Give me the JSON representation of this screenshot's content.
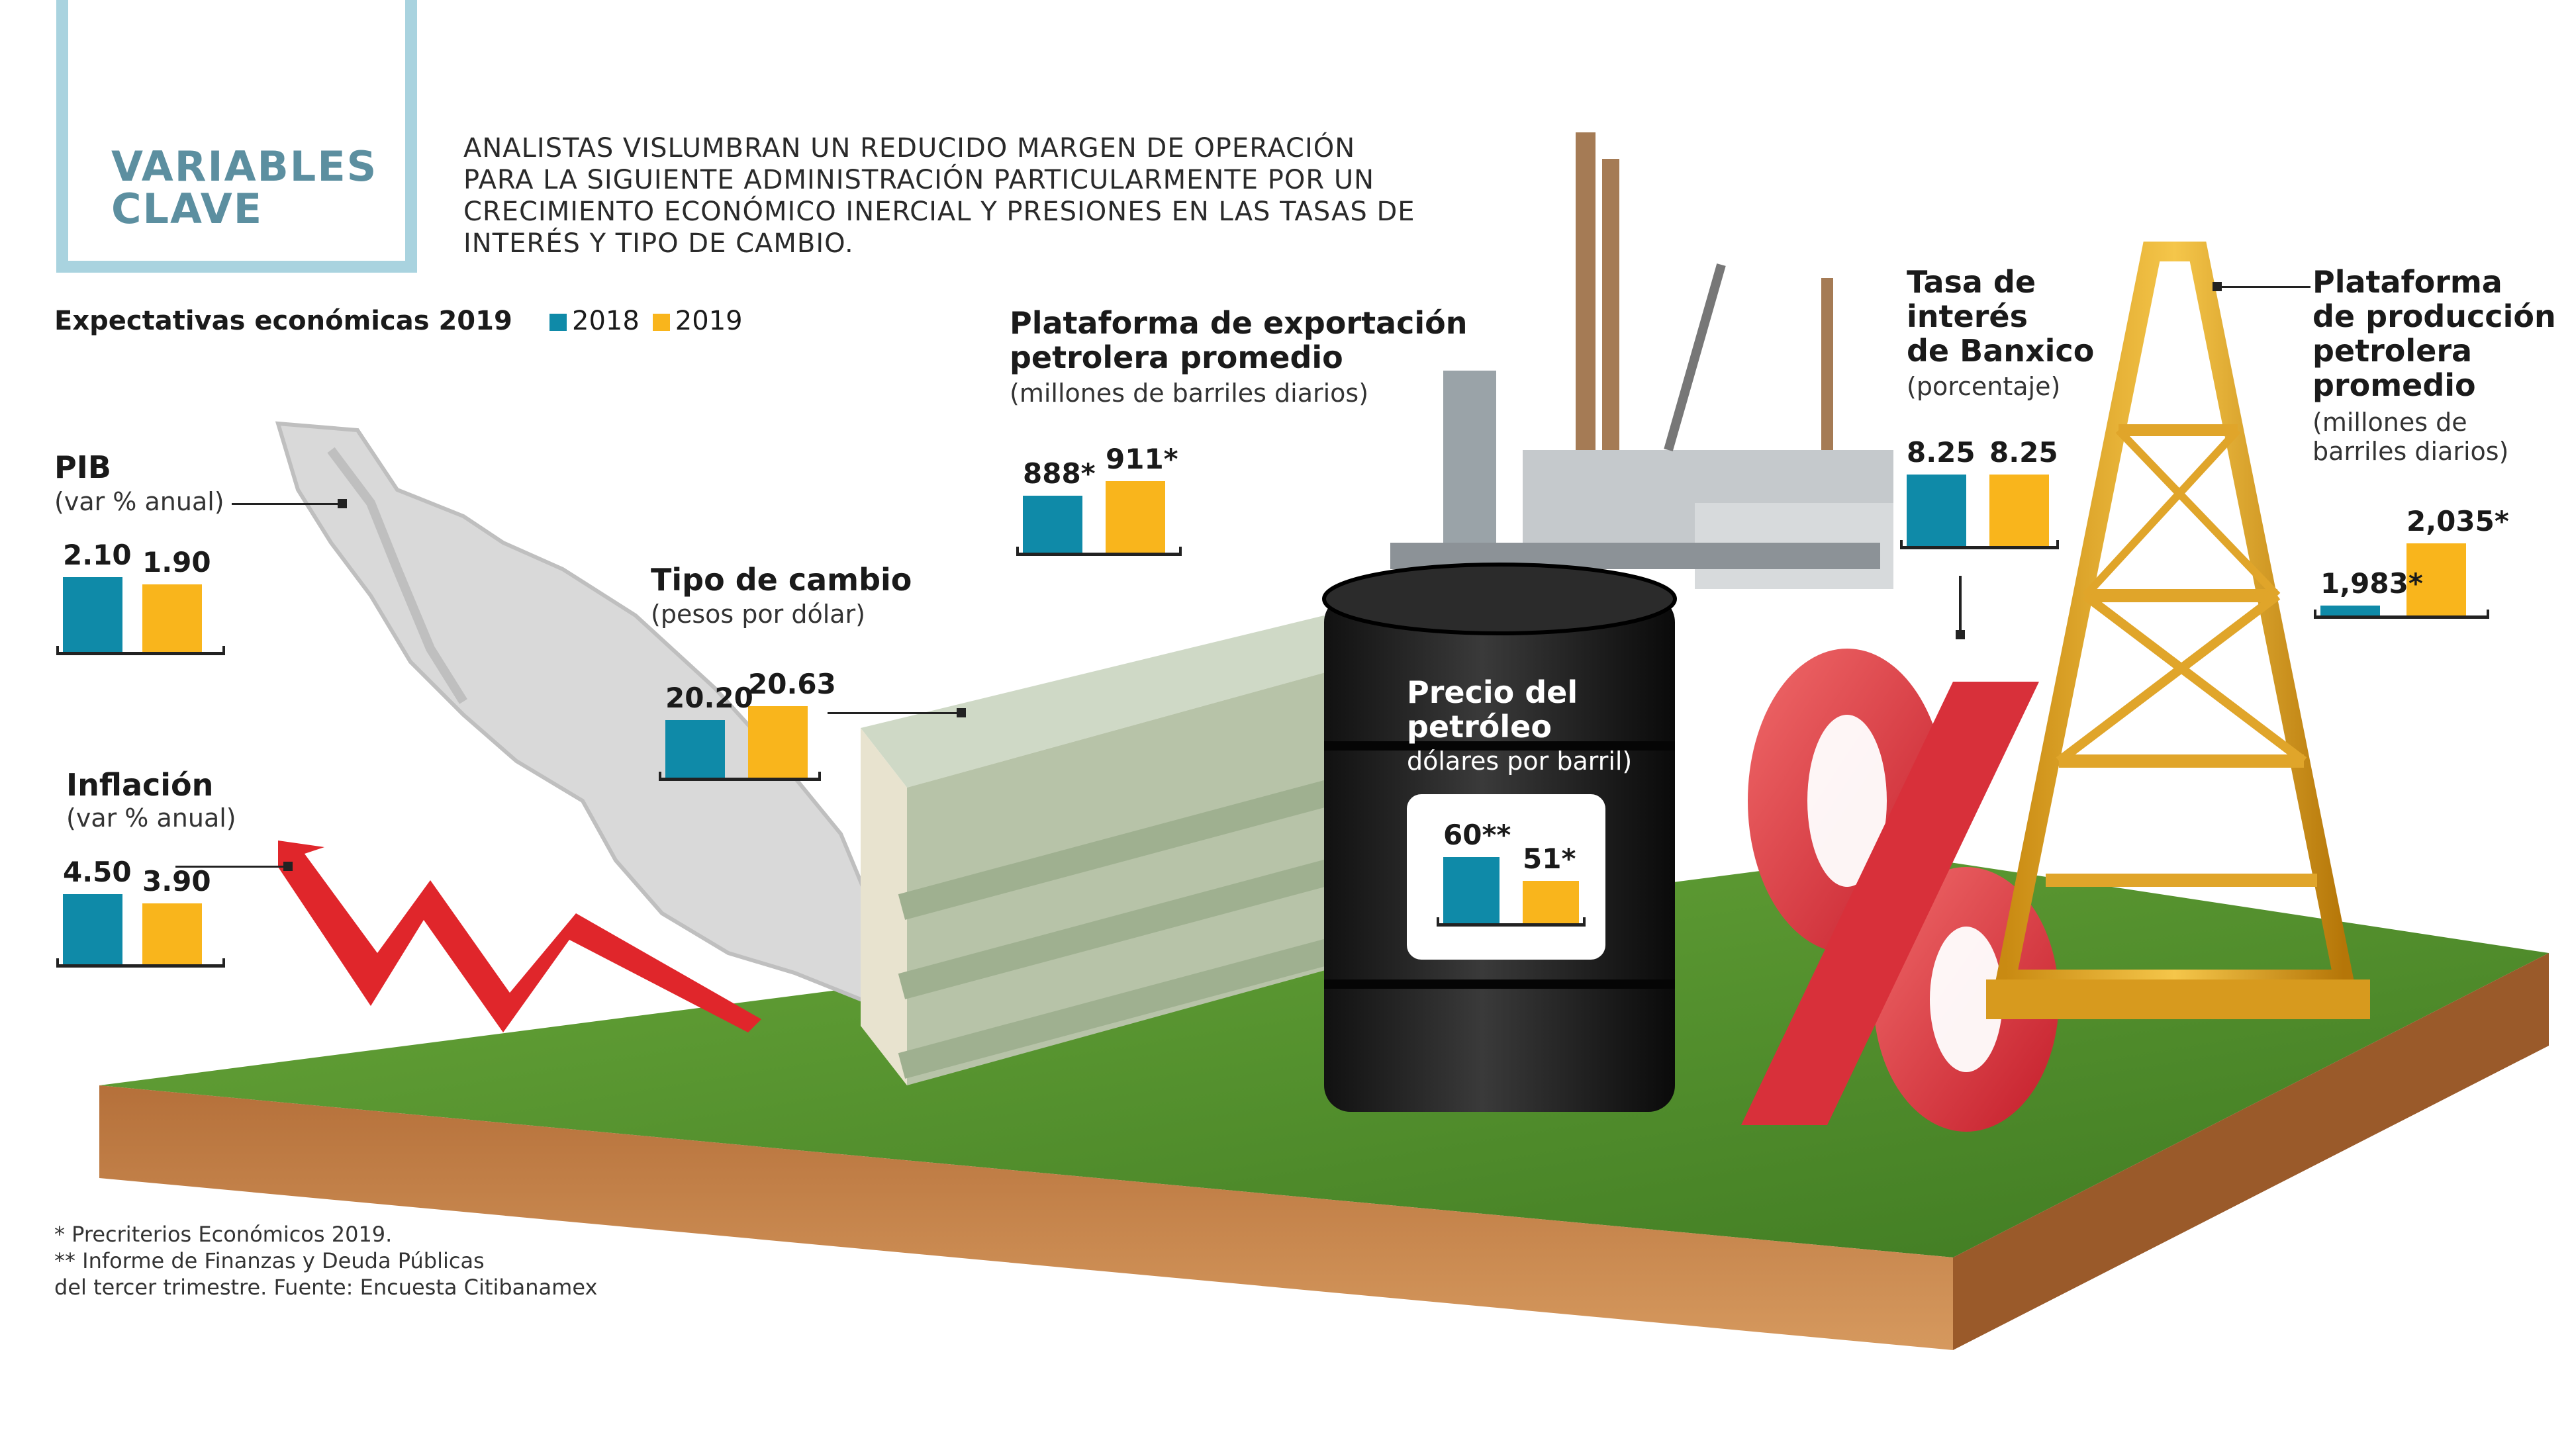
{
  "header": {
    "title_line1": "VARIABLES",
    "title_line2": "CLAVE",
    "intro": "ANALISTAS VISLUMBRAN UN REDUCIDO MARGEN DE OPERACIÓN PARA LA SIGUIENTE ADMINISTRACIÓN PARTICULARMENTE POR UN CRECIMIENTO ECONÓMICO INERCIAL Y PRESIONES EN LAS TASAS DE INTERÉS Y TIPO DE CAMBIO."
  },
  "subtitle": "Expectativas económicas 2019",
  "legend": {
    "a": "2018",
    "b": "2019"
  },
  "colors": {
    "y2018": "#0f8aa8",
    "y2019": "#f9b51c",
    "title": "#5c8fa0",
    "frame": "#a9d3df"
  },
  "chart_data": [
    {
      "type": "bar",
      "title": "PIB",
      "unit_label": "(var % anual)",
      "categories": [
        "2018",
        "2019"
      ],
      "values": [
        2.1,
        1.9
      ],
      "labels": [
        "2.10",
        "1.90"
      ]
    },
    {
      "type": "bar",
      "title": "Inflación",
      "unit_label": "(var % anual)",
      "categories": [
        "2018",
        "2019"
      ],
      "values": [
        4.5,
        3.9
      ],
      "labels": [
        "4.50",
        "3.90"
      ]
    },
    {
      "type": "bar",
      "title": "Tipo de cambio",
      "unit_label": "(pesos por dólar)",
      "categories": [
        "2018",
        "2019"
      ],
      "values": [
        20.2,
        20.63
      ],
      "labels": [
        "20.20",
        "20.63"
      ]
    },
    {
      "type": "bar",
      "title": "Plataforma de exportación petrolera promedio",
      "unit_label": "(millones de barriles diarios)",
      "categories": [
        "2018",
        "2019"
      ],
      "values": [
        888,
        911
      ],
      "labels": [
        "888*",
        "911*"
      ]
    },
    {
      "type": "bar",
      "title": "Precio del petróleo",
      "unit_label": "dólares por barril)",
      "categories": [
        "2018",
        "2019"
      ],
      "values": [
        60,
        51
      ],
      "labels": [
        "60**",
        "51*"
      ]
    },
    {
      "type": "bar",
      "title": "Tasa de interés de Banxico",
      "unit_label": "(porcentaje)",
      "categories": [
        "2018",
        "2019"
      ],
      "values": [
        8.25,
        8.25
      ],
      "labels": [
        "8.25",
        "8.25"
      ]
    },
    {
      "type": "bar",
      "title": "Plataforma de producción petrolera promedio",
      "unit_label": "(millones de barriles diarios)",
      "categories": [
        "2018",
        "2019"
      ],
      "values": [
        1983,
        2035
      ],
      "labels": [
        "1,983*",
        "2,035*"
      ]
    }
  ],
  "labels": {
    "pib_title": "PIB",
    "inflacion_title": "Inflación",
    "tc_title": "Tipo de cambio",
    "export_title_1": "Plataforma de exportación",
    "export_title_2": "petrolera promedio",
    "precio_title_1": "Precio del",
    "precio_title_2": "petróleo",
    "tasa_title_1": "Tasa de",
    "tasa_title_2": "interés",
    "tasa_title_3": "de Banxico",
    "prod_title_1": "Plataforma",
    "prod_title_2": "de producción",
    "prod_title_3": "petrolera",
    "prod_title_4": "promedio",
    "prod_unit_1": "(millones de",
    "prod_unit_2": "barriles diarios)"
  },
  "footnote": {
    "line1": "* Precriterios Económicos 2019.",
    "line2": " ** Informe de Finanzas y Deuda Públicas",
    "line3": "del tercer trimestre. Fuente: Encuesta Citibanamex"
  }
}
